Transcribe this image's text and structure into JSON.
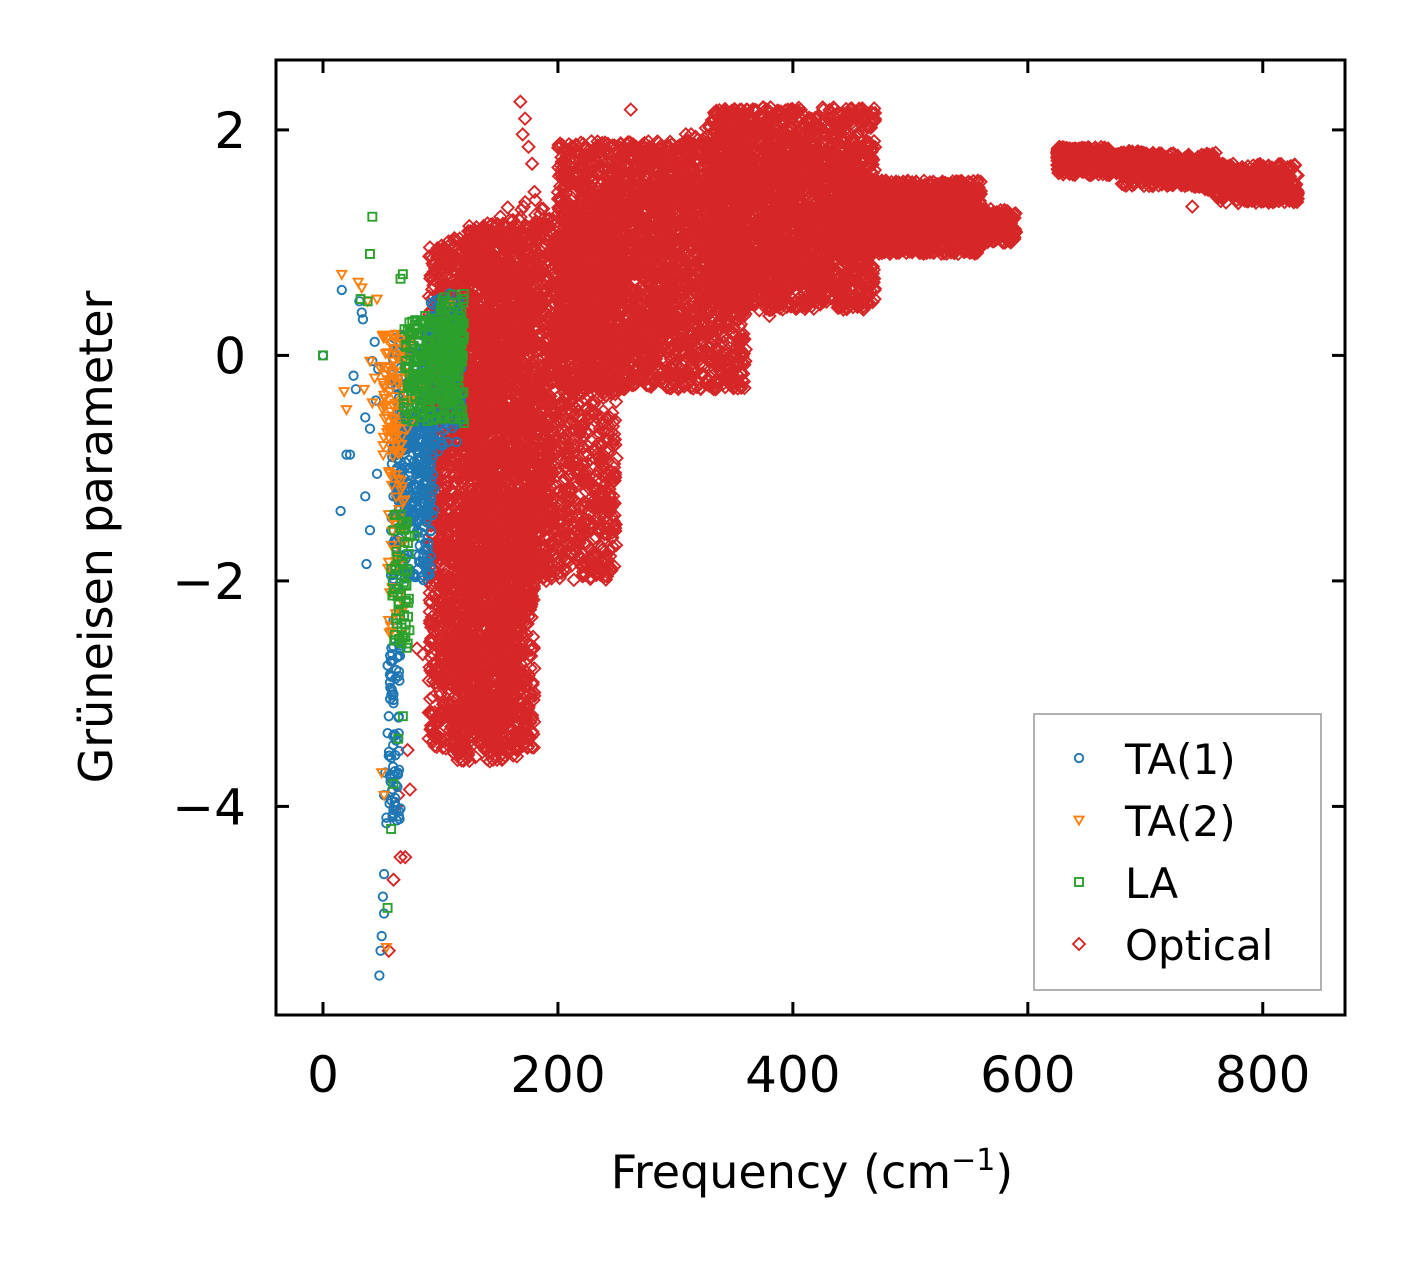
{
  "chart_data": {
    "type": "scatter",
    "xlabel": "Frequency (cm",
    "xlabel_sup": "−1",
    "xlabel_end": ")",
    "ylabel": "Grüneisen parameter",
    "xlim": [
      -40,
      870
    ],
    "ylim": [
      -5.85,
      2.62
    ],
    "xticks": [
      0,
      200,
      400,
      600,
      800
    ],
    "xtick_labels": [
      "0",
      "200",
      "400",
      "600",
      "800"
    ],
    "yticks": [
      2,
      0,
      -2,
      -4
    ],
    "ytick_labels": [
      "2",
      "0",
      "−2",
      "−4"
    ],
    "legend_position": "lower-right",
    "series": [
      {
        "name": "TA(1)",
        "marker": "circle",
        "color": "#1f77b4",
        "points": [
          [
            0,
            0
          ],
          [
            16,
            0.58
          ],
          [
            15,
            -1.38
          ],
          [
            20,
            -0.88
          ],
          [
            23,
            -0.88
          ],
          [
            26,
            -0.18
          ],
          [
            28,
            -0.3
          ],
          [
            31,
            0.48
          ],
          [
            33,
            0.38
          ],
          [
            34,
            0.32
          ],
          [
            36,
            -0.55
          ],
          [
            36,
            -1.25
          ],
          [
            37,
            -1.85
          ],
          [
            40,
            -0.65
          ],
          [
            40,
            -1.55
          ],
          [
            42,
            -0.05
          ],
          [
            44,
            0.12
          ],
          [
            45,
            -0.4
          ],
          [
            46,
            -1.05
          ],
          [
            47,
            -0.12
          ],
          [
            48,
            -5.5
          ],
          [
            49,
            -5.28
          ],
          [
            50,
            -5.15
          ],
          [
            51,
            -4.8
          ],
          [
            52,
            -4.6
          ],
          [
            52,
            -4.95
          ],
          [
            52,
            -3.9
          ],
          [
            53,
            -3.7
          ],
          [
            54,
            -4.1
          ],
          [
            54,
            -4.15
          ],
          [
            55,
            -2.75
          ],
          [
            55,
            -3.35
          ],
          [
            56,
            -3.2
          ],
          [
            56,
            -3.55
          ],
          [
            57,
            -2.9
          ],
          [
            58,
            -2.85
          ],
          [
            58,
            -1.55
          ],
          [
            59,
            -2.65
          ],
          [
            60,
            -2.35
          ],
          [
            60,
            -1.25
          ],
          [
            61,
            -1.65
          ],
          [
            62,
            -1.7
          ],
          [
            63,
            -2.05
          ],
          [
            63,
            -1.0
          ],
          [
            64,
            -1.8
          ],
          [
            65,
            -1.35
          ],
          [
            66,
            -0.8
          ],
          [
            66,
            -1.95
          ],
          [
            68,
            -0.6
          ],
          [
            70,
            -0.95
          ],
          [
            72,
            -0.35
          ],
          [
            75,
            -0.6
          ],
          [
            78,
            -0.2
          ],
          [
            80,
            -0.45
          ],
          [
            82,
            -1.0
          ],
          [
            84,
            -0.15
          ],
          [
            86,
            -0.65
          ],
          [
            88,
            -0.35
          ],
          [
            90,
            -1.2
          ],
          [
            92,
            -0.1
          ],
          [
            95,
            -0.5
          ],
          [
            98,
            -0.85
          ],
          [
            100,
            0.1
          ],
          [
            102,
            -0.3
          ],
          [
            104,
            0.25
          ],
          [
            106,
            -0.45
          ],
          [
            108,
            0.55
          ],
          [
            110,
            0.0
          ],
          [
            112,
            0.3
          ]
        ],
        "clusters": [
          [
            58,
            92,
            -2.0,
            0.2,
            260
          ],
          [
            62,
            95,
            -1.5,
            -0.5,
            180
          ],
          [
            56,
            66,
            -4.2,
            -2.5,
            70
          ],
          [
            90,
            118,
            -0.8,
            0.5,
            140
          ]
        ]
      },
      {
        "name": "TA(2)",
        "marker": "triangle-down",
        "color": "#ff7f0e",
        "points": [
          [
            16,
            0.72
          ],
          [
            18,
            -0.32
          ],
          [
            20,
            -0.48
          ],
          [
            30,
            0.65
          ],
          [
            33,
            0.6
          ],
          [
            35,
            -0.3
          ],
          [
            38,
            0.48
          ],
          [
            40,
            -0.05
          ],
          [
            42,
            -0.42
          ],
          [
            44,
            -0.2
          ],
          [
            46,
            0.5
          ],
          [
            48,
            -0.1
          ],
          [
            50,
            -3.7
          ],
          [
            52,
            -3.9
          ],
          [
            54,
            -5.25
          ],
          [
            56,
            -2.35
          ],
          [
            58,
            -2.45
          ],
          [
            60,
            -0.05
          ],
          [
            62,
            -1.5
          ],
          [
            64,
            -1.8
          ],
          [
            66,
            0.05
          ],
          [
            68,
            -0.3
          ],
          [
            70,
            -0.15
          ],
          [
            72,
            -0.65
          ],
          [
            74,
            0.1
          ],
          [
            76,
            -0.4
          ],
          [
            80,
            0.2
          ],
          [
            84,
            -0.3
          ],
          [
            90,
            0.1
          ],
          [
            96,
            -0.2
          ],
          [
            102,
            0.3
          ],
          [
            108,
            0.45
          ]
        ],
        "clusters": [
          [
            50,
            75,
            -0.9,
            0.2,
            90
          ],
          [
            55,
            70,
            -2.5,
            -1.0,
            40
          ]
        ]
      },
      {
        "name": "LA",
        "marker": "square",
        "color": "#2ca02c",
        "points": [
          [
            0,
            0
          ],
          [
            32,
            0.5
          ],
          [
            38,
            0.48
          ],
          [
            40,
            0.9
          ],
          [
            42,
            1.23
          ],
          [
            55,
            -4.9
          ],
          [
            58,
            -4.2
          ],
          [
            60,
            -3.8
          ],
          [
            64,
            -3.4
          ],
          [
            66,
            0.68
          ],
          [
            68,
            0.72
          ],
          [
            68,
            -3.2
          ],
          [
            70,
            -2.5
          ],
          [
            72,
            -1.9
          ],
          [
            74,
            -1.6
          ],
          [
            76,
            0.3
          ],
          [
            78,
            -1.6
          ],
          [
            80,
            0.2
          ],
          [
            84,
            -0.5
          ],
          [
            88,
            0.1
          ],
          [
            92,
            -0.3
          ],
          [
            96,
            0.3
          ],
          [
            100,
            -0.1
          ],
          [
            104,
            0.4
          ],
          [
            108,
            -0.2
          ],
          [
            112,
            0.2
          ],
          [
            116,
            -0.5
          ],
          [
            118,
            0.1
          ],
          [
            120,
            -0.6
          ],
          [
            118,
            0.3
          ]
        ],
        "clusters": [
          [
            68,
            120,
            -0.6,
            0.35,
            260
          ],
          [
            58,
            74,
            -2.6,
            -1.4,
            60
          ],
          [
            100,
            120,
            -0.3,
            0.55,
            80
          ]
        ]
      },
      {
        "name": "Optical",
        "marker": "diamond",
        "color": "#d62728",
        "points": [
          [
            56,
            -5.28
          ],
          [
            60,
            -4.65
          ],
          [
            62,
            -4.0
          ],
          [
            64,
            -3.9
          ],
          [
            66,
            -4.45
          ],
          [
            70,
            -4.45
          ],
          [
            72,
            -3.5
          ],
          [
            74,
            -3.85
          ],
          [
            80,
            -2.6
          ],
          [
            85,
            -2.65
          ],
          [
            90,
            -2.0
          ],
          [
            95,
            -2.45
          ],
          [
            100,
            -3.22
          ],
          [
            102,
            -2.7
          ],
          [
            104,
            -3.1
          ],
          [
            106,
            -1.4
          ],
          [
            112,
            -2.8
          ],
          [
            120,
            -2.4
          ],
          [
            126,
            -3.0
          ],
          [
            130,
            -2.7
          ],
          [
            134,
            -3.3
          ],
          [
            138,
            -3.5
          ],
          [
            142,
            -3.6
          ],
          [
            146,
            -3.2
          ],
          [
            150,
            -2.8
          ],
          [
            156,
            -2.5
          ],
          [
            160,
            -1.9
          ],
          [
            166,
            -1.8
          ],
          [
            168,
            2.25
          ],
          [
            170,
            1.96
          ],
          [
            172,
            2.1
          ],
          [
            175,
            1.85
          ],
          [
            178,
            1.7
          ],
          [
            180,
            1.45
          ],
          [
            186,
            1.3
          ],
          [
            190,
            -2.0
          ],
          [
            196,
            1.2
          ],
          [
            220,
            0.9
          ],
          [
            238,
            1.4
          ],
          [
            246,
            1.6
          ],
          [
            262,
            2.18
          ],
          [
            268,
            1.5
          ],
          [
            300,
            -0.05
          ],
          [
            340,
            0.5
          ],
          [
            380,
            0.35
          ],
          [
            408,
            0.48
          ],
          [
            430,
            0.55
          ],
          [
            740,
            1.32
          ]
        ],
        "clusters": [
          [
            90,
            180,
            -3.5,
            1.0,
            2200
          ],
          [
            120,
            250,
            -2.0,
            1.2,
            2200
          ],
          [
            200,
            360,
            -0.3,
            1.9,
            2600
          ],
          [
            330,
            470,
            0.4,
            2.2,
            2200
          ],
          [
            440,
            560,
            0.9,
            1.55,
            1400
          ],
          [
            550,
            590,
            1.0,
            1.3,
            250
          ],
          [
            625,
            670,
            1.6,
            1.85,
            260
          ],
          [
            680,
            760,
            1.5,
            1.8,
            350
          ],
          [
            760,
            830,
            1.35,
            1.7,
            300
          ],
          [
            110,
            170,
            -3.6,
            -1.8,
            400
          ]
        ],
        "bands": [
          [
            [
              90,
              -1.5,
              0.9
            ],
            [
              120,
              -1.8,
              1.1
            ],
            [
              150,
              -2.2,
              1.3
            ],
            [
              180,
              -1.6,
              1.4
            ],
            [
              200,
              -0.6,
              1.2
            ],
            [
              230,
              -0.2,
              1.4
            ],
            [
              260,
              0.0,
              1.9
            ],
            [
              300,
              0.2,
              1.9
            ],
            [
              340,
              0.3,
              2.2
            ],
            [
              380,
              0.5,
              2.0
            ],
            [
              420,
              0.7,
              1.9
            ],
            [
              460,
              0.9,
              1.6
            ],
            [
              500,
              1.0,
              1.5
            ],
            [
              540,
              1.1,
              1.3
            ],
            [
              580,
              1.1,
              1.15
            ]
          ],
          [
            [
              625,
              1.72,
              1.86
            ],
            [
              650,
              1.66,
              1.8
            ],
            [
              670,
              1.62,
              1.78
            ],
            [
              690,
              1.6,
              1.82
            ],
            [
              720,
              1.55,
              1.75
            ],
            [
              760,
              1.45,
              1.72
            ],
            [
              800,
              1.4,
              1.6
            ],
            [
              830,
              1.38,
              1.45
            ]
          ],
          [
            [
              100,
              -3.2,
              -1.5
            ],
            [
              130,
              -3.3,
              -1.8
            ],
            [
              150,
              -3.5,
              -2.0
            ],
            [
              180,
              -2.1,
              -1.2
            ],
            [
              195,
              -1.6,
              -0.6
            ]
          ]
        ]
      }
    ]
  }
}
